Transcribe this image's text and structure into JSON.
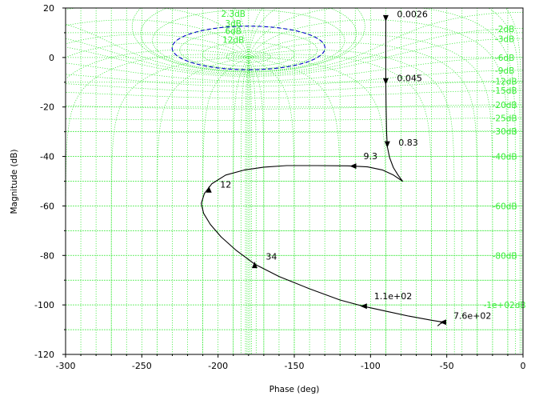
{
  "chart_data": {
    "type": "line",
    "title": "",
    "xlabel": "Phase (deg)",
    "ylabel": "Magnitude (dB)",
    "xlim": [
      -300,
      0
    ],
    "ylim": [
      -120,
      20
    ],
    "x_ticks": [
      "-300",
      "-250",
      "-200",
      "-150",
      "-100",
      "-50",
      "0"
    ],
    "y_ticks": [
      "20",
      "0",
      "-20",
      "-40",
      "-60",
      "-80",
      "-100",
      "-120"
    ],
    "x_tick_values": [
      -300,
      -250,
      -200,
      -150,
      -100,
      -50,
      0
    ],
    "y_tick_values": [
      20,
      0,
      -20,
      -40,
      -60,
      -80,
      -100,
      -120
    ],
    "grid": true,
    "nichols_grid": {
      "closed_loop_gain_labels_left": [
        "2.3dB",
        "3dB",
        "6dB",
        "12dB"
      ],
      "closed_loop_gain_labels_right": [
        "-2dB",
        "-3dB",
        "-6dB",
        "-9dB",
        "-12dB",
        "-15dB",
        "-20dB",
        "-25dB",
        "-30dB",
        "-40dB",
        "-60dB",
        "-80dB",
        "-1e+02dB"
      ],
      "closed_loop_gain_values_right": [
        -2,
        -3,
        -6,
        -9,
        -12,
        -15,
        -20,
        -25,
        -30,
        -40,
        -60,
        -80,
        -100
      ],
      "color": "#33ee33"
    },
    "ellipse_color": "#0000cc",
    "series": [
      {
        "color": "#000000",
        "points": [
          [
            -90.0,
            17.0
          ],
          [
            -90.0,
            10.0
          ],
          [
            -90.0,
            0.0
          ],
          [
            -90.0,
            -10.0
          ],
          [
            -89.8,
            -20.0
          ],
          [
            -89.5,
            -30.0
          ],
          [
            -89.0,
            -36.0
          ],
          [
            -87.5,
            -40.5
          ],
          [
            -85.0,
            -44.5
          ],
          [
            -82.0,
            -47.5
          ],
          [
            -79.0,
            -50.0
          ],
          [
            -85.0,
            -47.5
          ],
          [
            -92.0,
            -45.5
          ],
          [
            -102.0,
            -44.2
          ],
          [
            -115.0,
            -43.8
          ],
          [
            -135.0,
            -43.7
          ],
          [
            -155.0,
            -43.7
          ],
          [
            -170.0,
            -44.3
          ],
          [
            -183.0,
            -45.5
          ],
          [
            -195.0,
            -47.5
          ],
          [
            -204.0,
            -51.0
          ],
          [
            -209.0,
            -55.0
          ],
          [
            -211.0,
            -59.0
          ],
          [
            -209.5,
            -63.0
          ],
          [
            -205.0,
            -67.5
          ],
          [
            -198.0,
            -72.5
          ],
          [
            -188.0,
            -78.0
          ],
          [
            -176.0,
            -83.5
          ],
          [
            -160.0,
            -88.5
          ],
          [
            -140.0,
            -93.5
          ],
          [
            -120.0,
            -98.0
          ],
          [
            -105.0,
            -100.5
          ],
          [
            -90.0,
            -102.5
          ],
          [
            -75.0,
            -104.5
          ],
          [
            -60.0,
            -106.2
          ],
          [
            -52.0,
            -107.0
          ],
          [
            -54.0,
            -107.5
          ],
          [
            -56.0,
            -108.5
          ]
        ],
        "arrows": [
          {
            "x": -90.0,
            "y": 15.5,
            "dir": "down"
          },
          {
            "x": -90.0,
            "y": -10.0,
            "dir": "down"
          },
          {
            "x": -89.0,
            "y": -35.5,
            "dir": "down"
          },
          {
            "x": -112.0,
            "y": -43.9,
            "dir": "left"
          },
          {
            "x": -206.0,
            "y": -53.0,
            "dir": "up"
          },
          {
            "x": -176.0,
            "y": -83.5,
            "dir": "up"
          },
          {
            "x": -105.0,
            "y": -100.5,
            "dir": "left"
          },
          {
            "x": -53.0,
            "y": -107.0,
            "dir": "left"
          }
        ]
      }
    ],
    "frequency_labels": [
      {
        "text": "0.0026",
        "x": -90.0,
        "y": 17.0
      },
      {
        "text": "0.045",
        "x": -90.0,
        "y": -9.0
      },
      {
        "text": "0.83",
        "x": -89.0,
        "y": -35.0
      },
      {
        "text": "9.3",
        "x": -112.0,
        "y": -40.5
      },
      {
        "text": "12",
        "x": -206.0,
        "y": -52.0
      },
      {
        "text": "34",
        "x": -176.0,
        "y": -81.0
      },
      {
        "text": "1.1e+02",
        "x": -105.0,
        "y": -97.0
      },
      {
        "text": "7.6e+02",
        "x": -53.0,
        "y": -105.0
      }
    ]
  }
}
